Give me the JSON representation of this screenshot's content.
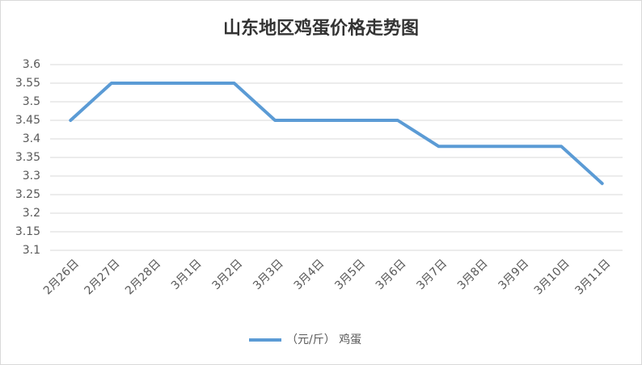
{
  "chart_data": {
    "type": "line",
    "title": "山东地区鸡蛋价格走势图",
    "categories": [
      "2月26日",
      "2月27日",
      "2月28日",
      "3月1日",
      "3月2日",
      "3月3日",
      "3月4日",
      "3月5日",
      "3月6日",
      "3月7日",
      "3月8日",
      "3月9日",
      "3月10日",
      "3月11日"
    ],
    "series": [
      {
        "name": "（元/斤） 鸡蛋",
        "color": "#5b9bd5",
        "values": [
          3.45,
          3.55,
          3.55,
          3.55,
          3.55,
          3.45,
          3.45,
          3.45,
          3.45,
          3.38,
          3.38,
          3.38,
          3.38,
          3.28
        ]
      }
    ],
    "ylim": [
      3.1,
      3.6
    ],
    "yticks": [
      3.1,
      3.15,
      3.2,
      3.25,
      3.3,
      3.35,
      3.4,
      3.45,
      3.5,
      3.55,
      3.6
    ],
    "grid": true,
    "legend": "bottom"
  }
}
